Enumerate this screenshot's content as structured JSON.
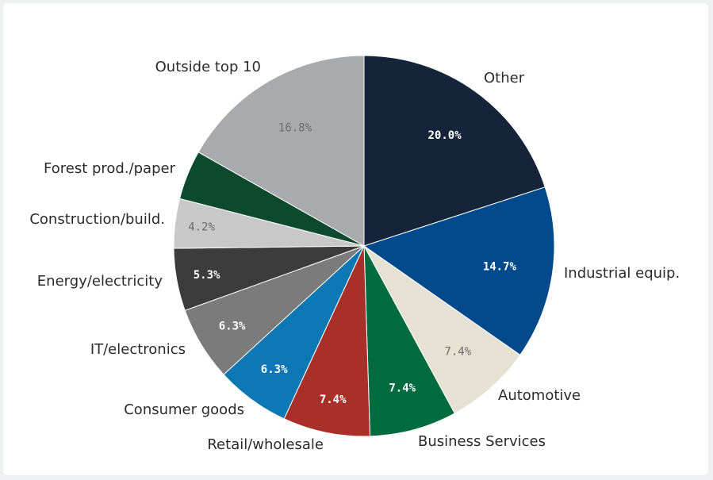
{
  "chart_data": {
    "type": "pie",
    "title": "",
    "legend": "none",
    "slices": [
      {
        "label": "Other",
        "value": 20.0,
        "value_label": "20.0%",
        "color": "#16243a",
        "text_color": "#ffffff"
      },
      {
        "label": "Industrial equip.",
        "value": 14.7,
        "value_label": "14.7%",
        "color": "#004a8c",
        "text_color": "#ffffff"
      },
      {
        "label": "Automotive",
        "value": 7.4,
        "value_label": "7.4%",
        "color": "#e6e2d3",
        "text_color": "#6b6b6b"
      },
      {
        "label": "Business Services",
        "value": 7.4,
        "value_label": "7.4%",
        "color": "#006b3f",
        "text_color": "#ffffff"
      },
      {
        "label": "Retail/wholesale",
        "value": 7.4,
        "value_label": "7.4%",
        "color": "#a83028",
        "text_color": "#ffffff"
      },
      {
        "label": "Consumer goods",
        "value": 6.3,
        "value_label": "6.3%",
        "color": "#0b77b3",
        "text_color": "#ffffff"
      },
      {
        "label": "IT/electronics",
        "value": 6.3,
        "value_label": "6.3%",
        "color": "#7b7b7b",
        "text_color": "#ffffff"
      },
      {
        "label": "Energy/electricity",
        "value": 5.3,
        "value_label": "5.3%",
        "color": "#3c3c3c",
        "text_color": "#ffffff"
      },
      {
        "label": "Construction/build.",
        "value": 4.2,
        "value_label": "4.2%",
        "color": "#c8c8c8",
        "text_color": "#6b6b6b"
      },
      {
        "label": "Forest prod./paper",
        "value": 4.2,
        "value_label": "",
        "color": "#0b4a2e",
        "text_color": "#ffffff"
      },
      {
        "label": "Outside top 10",
        "value": 16.8,
        "value_label": "16.8%",
        "color": "#a8aaad",
        "text_color": "#6b6b6b"
      }
    ]
  }
}
